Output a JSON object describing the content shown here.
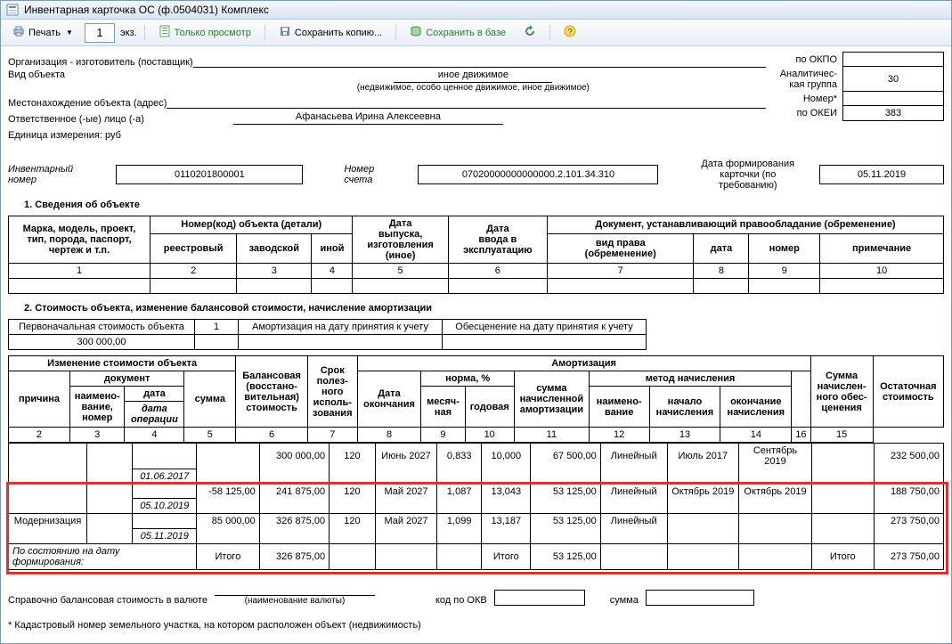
{
  "window": {
    "title": "Инвентарная карточка ОС (ф.0504031) Комплекс"
  },
  "toolbar": {
    "print": "Печать",
    "copies": "1",
    "copies_suffix": "экз.",
    "view_only": "Только просмотр",
    "save_copy": "Сохранить копию...",
    "save_db": "Сохранить в базе",
    "refresh_title": "Обновить",
    "help_title": "Справка"
  },
  "header": {
    "manufacturer_label": "Организация - изготовитель (поставщик)",
    "object_type_label": "Вид объекта",
    "object_type_value": "иное движимое",
    "object_type_caption": "(недвижимое, особо ценное движимое, иное движимое)",
    "location_label": "Местонахождение объекта (адрес)",
    "responsible_label": "Ответственное (-ые) лицо (-а)",
    "responsible_value": "Афанасьева Ирина Алексеевна",
    "unit_label": "Единица измерения: руб",
    "okpo": "по ОКПО",
    "okpo_val": "",
    "an_group": "Аналитичес-\nкая группа",
    "an_group_val": "30",
    "number": "Номер*",
    "number_val": "",
    "okei": "по ОКЕИ",
    "okei_val": "383"
  },
  "boxes": {
    "inv_label": "Инвентарный номер",
    "inv_value": "0110201800001",
    "acc_label": "Номер счета",
    "acc_value": "07020000000000000.2.101.34.310",
    "card_date_label": "Дата формирования\nкарточки (по требованию)",
    "card_date_value": "05.11.2019"
  },
  "section1": {
    "title": "1. Сведения об объекте",
    "h": {
      "mark": "Марка, модель, проект,\nтип, порода, паспорт,\nчертеж и т.п.",
      "objnum": "Номер(код) объекта (детали)",
      "reestr": "реестровый",
      "factory": "заводской",
      "other": "иной",
      "release": "Дата\nвыпуска,\nизготовления\n(иное)",
      "commission": "Дата\nввода в\nэксплуатацию",
      "doc": "Документ, устанавливающий правообладание (обременение)",
      "right": "вид права\n(обременение)",
      "date": "дата",
      "num": "номер",
      "note": "примечание"
    },
    "cols": [
      "1",
      "2",
      "3",
      "4",
      "5",
      "6",
      "7",
      "8",
      "9",
      "10"
    ]
  },
  "section2": {
    "title": "2. Стоимость объекта, изменение балансовой стоимости, начисление амортизации",
    "top": {
      "init_cost_label": "Первоначальная стоимость объекта",
      "init_cost_val": "300 000,00",
      "col1": "1",
      "amort_label": "Амортизация на дату принятия к учету",
      "amort_val": "",
      "deprec_label": "Обесценение на дату принятия к учету",
      "deprec_val": ""
    },
    "h": {
      "change": "Изменение стоимости объекта",
      "cause": "причина",
      "document": "документ",
      "name_num": "наимено-\nвание,\nномер",
      "date": "дата",
      "date_op": "дата\nоперации",
      "sum": "сумма",
      "bal": "Балансовая\n(восстано-\nвительная)\nстоимость",
      "term": "Срок\nполез-\nного\nисполь-\nзования",
      "amort": "Амортизация",
      "end_date": "Дата\nокончания",
      "norm": "норма, %",
      "month": "месяч-\nная",
      "year": "годовая",
      "accrued": "сумма\nначисленной\nамортизации",
      "method": "метод начисления",
      "mname": "наимено-\nвание",
      "start": "начало\nначисления",
      "end": "окончание\nначисления",
      "impair": "Сумма\nначислен-\nного обес-\nценения",
      "residual": "Остаточная\nстоимость"
    },
    "cols": [
      "2",
      "3",
      "4",
      "5",
      "6",
      "7",
      "8",
      "9",
      "10",
      "11",
      "12",
      "13",
      "14",
      "16",
      "15"
    ],
    "rows": [
      {
        "cause": "",
        "name": "",
        "date": "01.06.2017",
        "sum": "",
        "bal": "300 000,00",
        "term": "120",
        "end": "Июнь 2027",
        "m": "0,833",
        "y": "10,000",
        "accr": "67 500,00",
        "meth": "Линейный",
        "start": "Июль 2017",
        "fin": "Сентябрь 2019",
        "imp": "",
        "res": "232 500,00"
      },
      {
        "cause": "",
        "name": "",
        "date": "05.10.2019",
        "sum": "-58 125,00",
        "bal": "241 875,00",
        "term": "120",
        "end": "Май 2027",
        "m": "1,087",
        "y": "13,043",
        "accr": "53 125,00",
        "meth": "Линейный",
        "start": "Октябрь 2019",
        "fin": "Октябрь 2019",
        "imp": "",
        "res": "188 750,00"
      },
      {
        "cause": "Модернизация",
        "name": "",
        "date": "05.11.2019",
        "sum": "85 000,00",
        "bal": "326 875,00",
        "term": "120",
        "end": "Май 2027",
        "m": "1,099",
        "y": "13,187",
        "accr": "53 125,00",
        "meth": "Линейный",
        "start": "",
        "fin": "",
        "imp": "",
        "res": "273 750,00"
      }
    ],
    "total": {
      "label": "По состоянию на дату формирования:",
      "itogo": "Итого",
      "bal": "326 875,00",
      "accr": "53 125,00",
      "res": "273 750,00"
    }
  },
  "footer": {
    "ref_label": "Справочно балансовая стоимость в валюте",
    "cur_caption": "(наименование валюты)",
    "okv": "код по ОКВ",
    "sum": "сумма",
    "note": "* Кадастровый номер земельного участка, на котором расположен объект (недвижимость)"
  },
  "colors": {
    "hl": "#d8352a"
  }
}
